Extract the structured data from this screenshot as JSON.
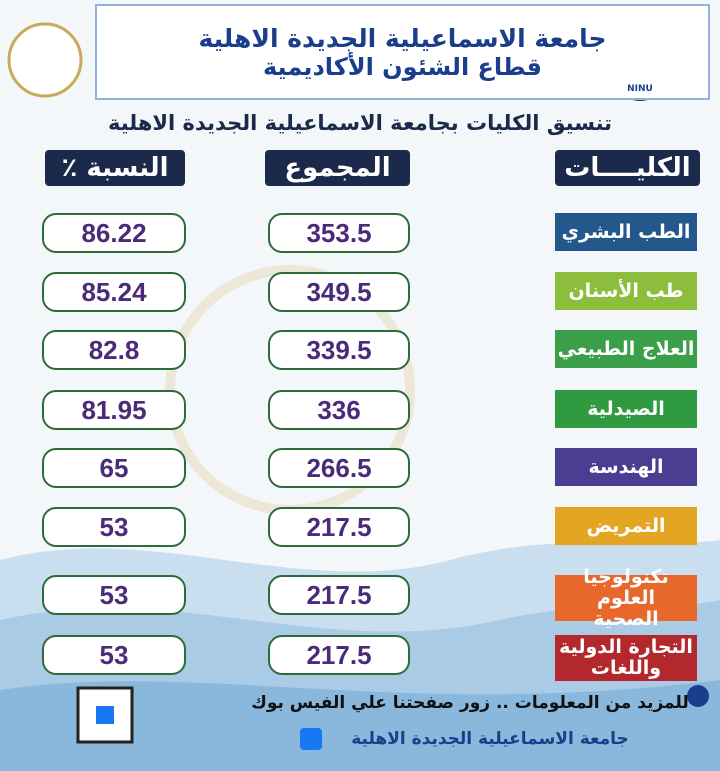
{
  "header": {
    "logo_text": "NINU",
    "title": "جامعة الاسماعيلية الجديدة الاهلية",
    "subtitle": "قطاع الشئون الأكاديمية"
  },
  "heading": "تنسيق الكليات بجامعة الاسماعيلية الجديدة الاهلية",
  "table": {
    "columns": [
      "الكليــــات",
      "المجموع",
      "النسبة ٪"
    ],
    "rows": [
      {
        "faculty": [
          "الطب البشري"
        ],
        "total": "353.5",
        "percent": "86.22",
        "color": "#24588c"
      },
      {
        "faculty": [
          "طب الأسنان"
        ],
        "total": "349.5",
        "percent": "85.24",
        "color": "#8dbd3c"
      },
      {
        "faculty": [
          "العلاج الطبيعي"
        ],
        "total": "339.5",
        "percent": "82.8",
        "color": "#3a9f48"
      },
      {
        "faculty": [
          "الصيدلية"
        ],
        "total": "336",
        "percent": "81.95",
        "color": "#2f9a3f"
      },
      {
        "faculty": [
          "الهندسة"
        ],
        "total": "266.5",
        "percent": "65",
        "color": "#4a3d92"
      },
      {
        "faculty": [
          "التمريض"
        ],
        "total": "217.5",
        "percent": "53",
        "color": "#e3a623"
      },
      {
        "faculty": [
          "تكنولوجيا العلوم",
          "الصحية"
        ],
        "total": "217.5",
        "percent": "53",
        "color": "#e8672a"
      },
      {
        "faculty": [
          "التجارة الدولية",
          "واللغات"
        ],
        "total": "217.5",
        "percent": "53",
        "color": "#b3282c"
      }
    ]
  },
  "footer": {
    "more_info": "للمزيد من المعلومات .. زور صفحتنا علي الفيس بوك",
    "page_name": "جامعة الاسماعيلية الجديدة الاهلية"
  }
}
